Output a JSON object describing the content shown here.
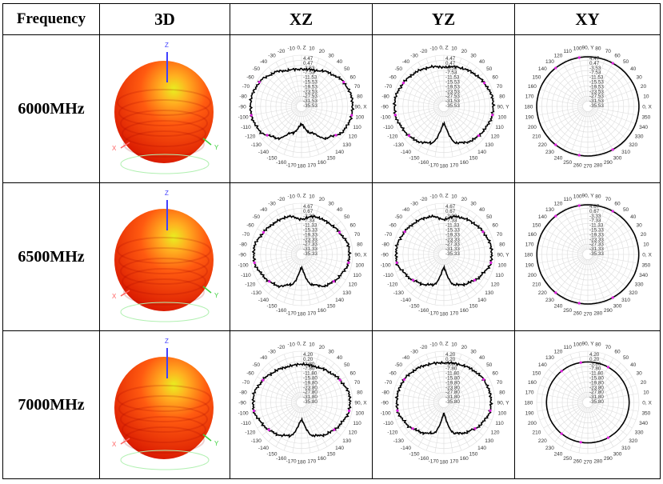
{
  "header": {
    "frequency": "Frequency",
    "col_3d": "3D",
    "col_xz": "XZ",
    "col_yz": "YZ",
    "col_xy": "XY"
  },
  "axis_names_3d": {
    "z": "Z",
    "x": "X",
    "y": "Y"
  },
  "colors": {
    "pattern_line": "#000000",
    "marker": "#e020e0",
    "grid": "#dddddd",
    "sphere_outer": "#d81800",
    "sphere_mid": "#ff5a10",
    "sphere_highlight": "#e8f020",
    "z_axis": "#4040ff",
    "x_axis": "#ff6060",
    "y_axis": "#40d040"
  },
  "angle_labels": {
    "xz": [
      "0, Z",
      "10",
      "20",
      "30",
      "40",
      "50",
      "60",
      "70",
      "80",
      "90, X",
      "100",
      "110",
      "120",
      "130",
      "140",
      "150",
      "160",
      "170",
      "180",
      "-170",
      "-160",
      "-150",
      "-140",
      "-130",
      "-120",
      "-110",
      "-100",
      "-90",
      "-80",
      "-70",
      "-60",
      "-50",
      "-40",
      "-30",
      "-20",
      "-10"
    ],
    "yz": [
      "0, Z",
      "10",
      "20",
      "30",
      "40",
      "50",
      "60",
      "70",
      "80",
      "90, Y",
      "100",
      "110",
      "120",
      "130",
      "140",
      "150",
      "160",
      "170",
      "180",
      "-170",
      "-160",
      "-150",
      "-140",
      "-130",
      "-120",
      "-110",
      "-100",
      "-90",
      "-80",
      "-70",
      "-60",
      "-50",
      "-40",
      "-30",
      "-20",
      "-10"
    ],
    "xy": [
      "0, X",
      "10",
      "20",
      "30",
      "40",
      "50",
      "60",
      "70",
      "80",
      "90, Y",
      "100",
      "110",
      "120",
      "130",
      "140",
      "150",
      "160",
      "170",
      "180",
      "190",
      "200",
      "210",
      "220",
      "230",
      "240",
      "250",
      "260",
      "270",
      "280",
      "290",
      "300",
      "310",
      "320",
      "330",
      "340",
      "350"
    ]
  },
  "rows": [
    {
      "label": "6000MHz",
      "scale": [
        "4.47",
        "0.47",
        "-3.53",
        "-7.53",
        "-11.53",
        "-15.53",
        "-19.53",
        "-23.53",
        "-27.53",
        "-31.53",
        "-35.53"
      ],
      "max": 4.47,
      "min": -35.53,
      "chart_data": {
        "type": "polar",
        "gain_sample_angles_deg": [
          0,
          20,
          40,
          60,
          80,
          100,
          120,
          140,
          160,
          180,
          200,
          220,
          240,
          260,
          280,
          300,
          320,
          340
        ],
        "xz": [
          -6.7,
          -5.5,
          -1.5,
          2.5,
          4.3,
          4.3,
          2.5,
          -3.5,
          -13.5,
          -21.5,
          -13.5,
          -3.5,
          2.5,
          4.3,
          4.3,
          2.5,
          -1.5,
          -5.5
        ],
        "yz": [
          -5,
          -3,
          -1,
          1,
          3,
          3,
          1,
          -1,
          -5,
          -22,
          -5,
          -1,
          1,
          3,
          3,
          1,
          -1,
          -3
        ],
        "xy": [
          4.4,
          4.2,
          3.8,
          3.4,
          3.2,
          3.2,
          3.4,
          3.8,
          4.2,
          4.4,
          4.2,
          3.8,
          3.4,
          3.2,
          3.2,
          3.4,
          3.8,
          4.2
        ]
      }
    },
    {
      "label": "6500MHz",
      "scale": [
        "4.67",
        "0.67",
        "-3.33",
        "-7.33",
        "-11.33",
        "-15.33",
        "-19.33",
        "-23.33",
        "-27.33",
        "-31.33",
        "-35.33"
      ],
      "max": 4.67,
      "min": -35.33,
      "chart_data": {
        "type": "polar",
        "gain_sample_angles_deg": [
          0,
          20,
          40,
          60,
          80,
          100,
          120,
          140,
          160,
          180,
          200,
          220,
          240,
          260,
          280,
          300,
          320,
          340
        ],
        "xz": [
          -8,
          -4,
          -3,
          -1,
          2,
          2,
          -1,
          -4,
          -10,
          -25,
          -10,
          -4,
          -1,
          2,
          2,
          -1,
          -3,
          -4
        ],
        "yz": [
          -8,
          -4,
          -2,
          0,
          2,
          2,
          -2,
          -6,
          -10,
          -25,
          -10,
          -6,
          -2,
          2,
          2,
          0,
          -2,
          -4
        ],
        "xy": [
          4.5,
          4.3,
          3.9,
          3.6,
          3.4,
          3.4,
          3.6,
          3.9,
          4.3,
          4.5,
          4.3,
          3.9,
          3.6,
          3.4,
          3.4,
          3.6,
          3.9,
          4.3
        ]
      }
    },
    {
      "label": "7000MHz",
      "scale": [
        "4.20",
        "0.20",
        "-3.80",
        "-7.80",
        "-11.80",
        "-15.80",
        "-19.80",
        "-23.80",
        "-27.80",
        "-31.80",
        "-35.80"
      ],
      "max": 4.2,
      "min": -35.8,
      "chart_data": {
        "type": "polar",
        "gain_sample_angles_deg": [
          0,
          20,
          40,
          60,
          80,
          100,
          120,
          140,
          160,
          180,
          200,
          220,
          240,
          260,
          280,
          300,
          320,
          340
        ],
        "xz": [
          -6,
          -6,
          -4,
          -1,
          2,
          2,
          -1,
          -4,
          -8,
          -22,
          -8,
          -4,
          -1,
          2,
          2,
          -1,
          -4,
          -6
        ],
        "yz": [
          -5,
          -4,
          -2,
          0,
          1,
          1,
          -2,
          -6,
          -10,
          -27,
          -10,
          -6,
          -2,
          1,
          1,
          0,
          -2,
          -4
        ],
        "xy": [
          -3.5,
          -3.6,
          -3.8,
          -4,
          -4.2,
          -4.2,
          -4,
          -3.8,
          -3.6,
          -3.5,
          -3.6,
          -3.8,
          -4,
          -4.2,
          -4.2,
          -4,
          -3.8,
          -3.6
        ]
      }
    }
  ]
}
